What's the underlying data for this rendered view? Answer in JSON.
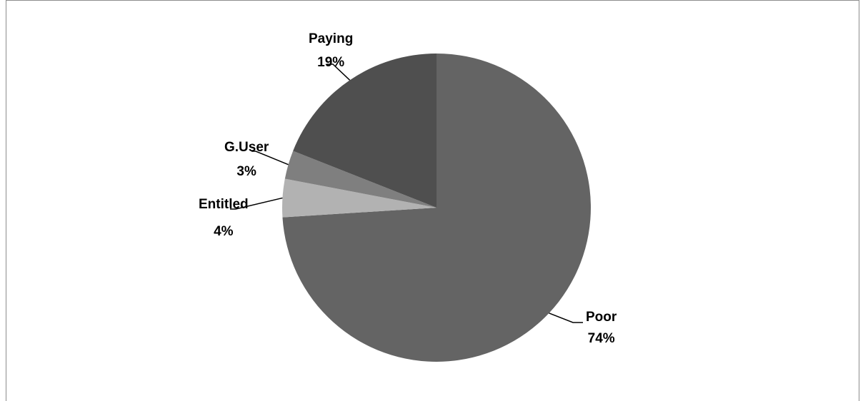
{
  "chart_data": {
    "type": "pie",
    "title": "",
    "start_angle_deg": 0,
    "direction": "clockwise",
    "slices": [
      {
        "label": "Poor",
        "value": 74,
        "pct_label": "74%",
        "color": "#646464"
      },
      {
        "label": "Entitled",
        "value": 4,
        "pct_label": "4%",
        "color": "#b2b2b2"
      },
      {
        "label": "G.User",
        "value": 3,
        "pct_label": "3%",
        "color": "#7f7f7f"
      },
      {
        "label": "Paying",
        "value": 19,
        "pct_label": "19%",
        "color": "#4f4f4f"
      }
    ],
    "legend": "none",
    "data_labels": "outside-with-leader-lines"
  }
}
